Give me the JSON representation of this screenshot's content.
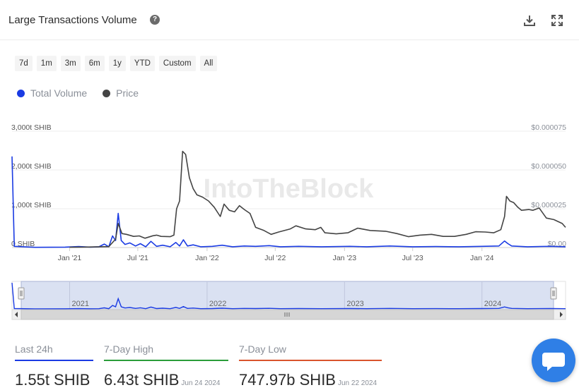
{
  "header": {
    "title": "Large Transactions Volume",
    "help_icon": "question-icon",
    "download_icon": "download-icon",
    "fullscreen_icon": "fullscreen-icon"
  },
  "ranges": [
    "7d",
    "1m",
    "3m",
    "6m",
    "1y",
    "YTD",
    "Custom",
    "All"
  ],
  "legend": [
    {
      "name": "Total Volume",
      "color": "#1a3be3"
    },
    {
      "name": "Price",
      "color": "#444444"
    }
  ],
  "watermark": "IntoTheBlock",
  "chart_data": {
    "type": "line",
    "x_ticks": [
      "Jan '21",
      "Jul '21",
      "Jan '22",
      "Jul '22",
      "Jan '23",
      "Jul '23",
      "Jan '24"
    ],
    "y_left_ticks": [
      "0 SHIB",
      "1,000t SHIB",
      "2,000t SHIB",
      "3,000t SHIB"
    ],
    "y_right_ticks": [
      "$0.00",
      "$0.000025",
      "$0.000050",
      "$0.000075"
    ],
    "ylim_left": [
      0,
      3000
    ],
    "ylim_right": [
      0,
      7.5e-05
    ],
    "x_range": [
      "2020-08-01",
      "2024-08-10"
    ],
    "series": [
      {
        "name": "Total Volume",
        "axis": "left",
        "unit": "t SHIB",
        "points": [
          [
            "2020-08-01",
            2350
          ],
          [
            "2020-08-07",
            30
          ],
          [
            "2020-10-01",
            5
          ],
          [
            "2020-12-20",
            10
          ],
          [
            "2021-01-25",
            25
          ],
          [
            "2021-02-25",
            10
          ],
          [
            "2021-03-20",
            20
          ],
          [
            "2021-04-03",
            90
          ],
          [
            "2021-04-15",
            20
          ],
          [
            "2021-04-25",
            300
          ],
          [
            "2021-05-03",
            180
          ],
          [
            "2021-05-10",
            880
          ],
          [
            "2021-05-18",
            180
          ],
          [
            "2021-05-28",
            80
          ],
          [
            "2021-06-10",
            120
          ],
          [
            "2021-06-25",
            40
          ],
          [
            "2021-07-08",
            100
          ],
          [
            "2021-07-22",
            20
          ],
          [
            "2021-08-05",
            160
          ],
          [
            "2021-08-20",
            30
          ],
          [
            "2021-09-05",
            60
          ],
          [
            "2021-09-25",
            20
          ],
          [
            "2021-10-10",
            130
          ],
          [
            "2021-10-20",
            40
          ],
          [
            "2021-10-30",
            200
          ],
          [
            "2021-11-10",
            40
          ],
          [
            "2021-11-25",
            70
          ],
          [
            "2021-12-15",
            20
          ],
          [
            "2022-01-15",
            30
          ],
          [
            "2022-02-10",
            60
          ],
          [
            "2022-03-10",
            20
          ],
          [
            "2022-04-10",
            40
          ],
          [
            "2022-05-10",
            30
          ],
          [
            "2022-06-15",
            50
          ],
          [
            "2022-07-15",
            20
          ],
          [
            "2022-09-01",
            30
          ],
          [
            "2022-11-01",
            20
          ],
          [
            "2023-01-15",
            30
          ],
          [
            "2023-03-01",
            20
          ],
          [
            "2023-05-01",
            40
          ],
          [
            "2023-07-01",
            20
          ],
          [
            "2023-09-01",
            25
          ],
          [
            "2023-11-01",
            20
          ],
          [
            "2024-01-01",
            30
          ],
          [
            "2024-02-15",
            40
          ],
          [
            "2024-03-01",
            170
          ],
          [
            "2024-03-10",
            100
          ],
          [
            "2024-03-20",
            40
          ],
          [
            "2024-05-01",
            20
          ],
          [
            "2024-07-01",
            30
          ],
          [
            "2024-08-10",
            20
          ]
        ]
      },
      {
        "name": "Price",
        "axis": "right",
        "unit": "$",
        "points": [
          [
            "2021-01-01",
            2e-07
          ],
          [
            "2021-02-15",
            3e-07
          ],
          [
            "2021-04-15",
            6e-07
          ],
          [
            "2021-05-03",
            5.4e-06
          ],
          [
            "2021-05-10",
            1.55e-05
          ],
          [
            "2021-05-20",
            9e-06
          ],
          [
            "2021-06-01",
            8.5e-06
          ],
          [
            "2021-06-20",
            7.2e-06
          ],
          [
            "2021-07-05",
            7.5e-06
          ],
          [
            "2021-07-20",
            6e-06
          ],
          [
            "2021-08-10",
            7.6e-06
          ],
          [
            "2021-08-20",
            8e-06
          ],
          [
            "2021-09-01",
            7.2e-06
          ],
          [
            "2021-09-25",
            7e-06
          ],
          [
            "2021-10-05",
            8e-06
          ],
          [
            "2021-10-12",
            2.5e-05
          ],
          [
            "2021-10-20",
            3e-05
          ],
          [
            "2021-10-28",
            6.2e-05
          ],
          [
            "2021-11-05",
            6e-05
          ],
          [
            "2021-11-15",
            4.5e-05
          ],
          [
            "2021-11-25",
            3.8e-05
          ],
          [
            "2021-12-05",
            3.4e-05
          ],
          [
            "2021-12-20",
            3.25e-05
          ],
          [
            "2022-01-05",
            3e-05
          ],
          [
            "2022-01-20",
            2.6e-05
          ],
          [
            "2022-02-05",
            2e-05
          ],
          [
            "2022-02-15",
            2.8e-05
          ],
          [
            "2022-03-01",
            2.4e-05
          ],
          [
            "2022-03-15",
            2.3e-05
          ],
          [
            "2022-03-28",
            2.7e-05
          ],
          [
            "2022-04-10",
            2.45e-05
          ],
          [
            "2022-04-25",
            2.2e-05
          ],
          [
            "2022-05-10",
            1.3e-05
          ],
          [
            "2022-06-01",
            1.1e-05
          ],
          [
            "2022-06-20",
            8.5e-06
          ],
          [
            "2022-07-10",
            1e-05
          ],
          [
            "2022-08-10",
            1.2e-05
          ],
          [
            "2022-08-25",
            1.4e-05
          ],
          [
            "2022-09-20",
            1.2e-05
          ],
          [
            "2022-10-15",
            1.15e-05
          ],
          [
            "2022-10-30",
            1.3e-05
          ],
          [
            "2022-11-10",
            9.5e-06
          ],
          [
            "2022-12-10",
            8.8e-06
          ],
          [
            "2023-01-10",
            9.5e-06
          ],
          [
            "2023-02-05",
            1.25e-05
          ],
          [
            "2023-03-10",
            1.1e-05
          ],
          [
            "2023-04-20",
            1.05e-05
          ],
          [
            "2023-05-20",
            9e-06
          ],
          [
            "2023-06-20",
            7e-06
          ],
          [
            "2023-07-20",
            8e-06
          ],
          [
            "2023-08-20",
            8.5e-06
          ],
          [
            "2023-09-20",
            7.2e-06
          ],
          [
            "2023-10-20",
            7.2e-06
          ],
          [
            "2023-11-20",
            8.5e-06
          ],
          [
            "2023-12-15",
            1.02e-05
          ],
          [
            "2024-01-10",
            1e-05
          ],
          [
            "2024-02-01",
            9.5e-06
          ],
          [
            "2024-02-20",
            1.15e-05
          ],
          [
            "2024-03-01",
            2e-05
          ],
          [
            "2024-03-06",
            3.3e-05
          ],
          [
            "2024-03-15",
            3e-05
          ],
          [
            "2024-03-25",
            2.9e-05
          ],
          [
            "2024-04-05",
            2.6e-05
          ],
          [
            "2024-04-15",
            2.4e-05
          ],
          [
            "2024-05-05",
            2.45e-05
          ],
          [
            "2024-05-15",
            2.4e-05
          ],
          [
            "2024-06-01",
            2.55e-05
          ],
          [
            "2024-06-20",
            1.9e-05
          ],
          [
            "2024-07-10",
            1.8e-05
          ],
          [
            "2024-08-01",
            1.55e-05
          ],
          [
            "2024-08-10",
            1.3e-05
          ]
        ]
      }
    ],
    "navigator": {
      "year_labels": [
        "2021",
        "2022",
        "2023",
        "2024"
      ]
    }
  },
  "stats": [
    {
      "label": "Last 24h",
      "value": "1.55t SHIB",
      "date": "",
      "color": "#1a3be3"
    },
    {
      "label": "7-Day High",
      "value": "6.43t SHIB",
      "date": "Jun 24 2024",
      "color": "#2a9d3a"
    },
    {
      "label": "7-Day Low",
      "value": "747.97b SHIB",
      "date": "Jun 22 2024",
      "color": "#d9532c"
    }
  ],
  "chat_icon": "chat-bubble-icon"
}
